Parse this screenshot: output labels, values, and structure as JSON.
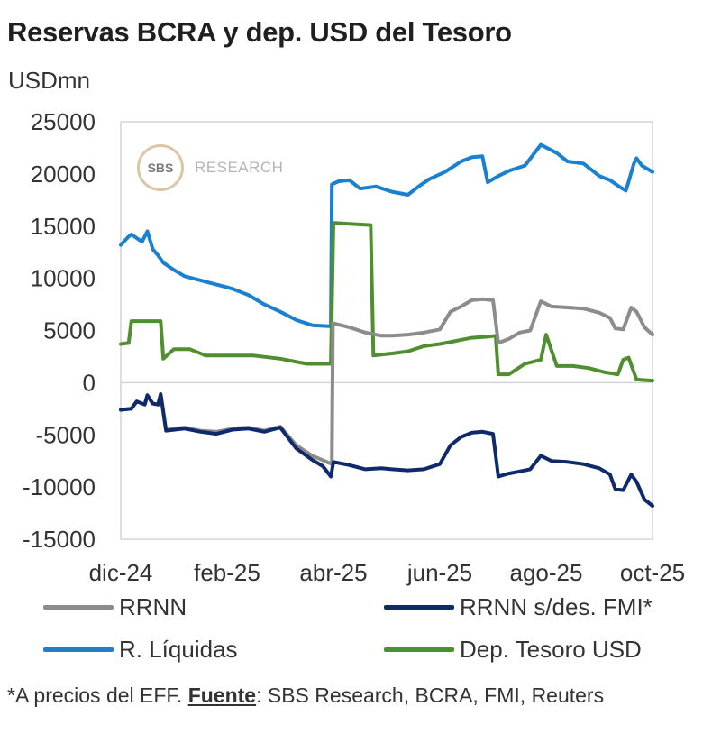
{
  "title": "Reservas BCRA y dep. USD del Tesoro",
  "unit_label": "USDmn",
  "logo": {
    "mark": "SBS",
    "text": "RESEARCH"
  },
  "footnote": {
    "prefix": "*A precios del EFF. ",
    "source_label": "Fuente",
    "source_text": ": SBS Research, BCRA, FMI, Reuters"
  },
  "legend": [
    {
      "label": "RRNN",
      "color": "#8c8c8c"
    },
    {
      "label": "RRNN s/des. FMI*",
      "color": "#0f2a6b"
    },
    {
      "label": "R. Líquidas",
      "color": "#1a80d0"
    },
    {
      "label": "Dep. Tesoro USD",
      "color": "#4f8f2f"
    }
  ],
  "chart_data": {
    "type": "line",
    "xlim": [
      0,
      10
    ],
    "ylim": [
      -15000,
      25000
    ],
    "yticks": [
      25000,
      20000,
      15000,
      10000,
      5000,
      0,
      -5000,
      -10000,
      -15000
    ],
    "xticks": [
      {
        "x": 0,
        "label": "dic-24"
      },
      {
        "x": 2,
        "label": "feb-25"
      },
      {
        "x": 4,
        "label": "abr-25"
      },
      {
        "x": 6,
        "label": "jun-25"
      },
      {
        "x": 8,
        "label": "ago-25"
      },
      {
        "x": 10,
        "label": "oct-25"
      }
    ],
    "series": [
      {
        "name": "R. Líquidas",
        "color": "#1a80d0",
        "x": [
          0,
          0.15,
          0.2,
          0.4,
          0.5,
          0.6,
          0.7,
          0.8,
          1.0,
          1.2,
          1.5,
          1.8,
          2.1,
          2.4,
          2.7,
          3.0,
          3.3,
          3.6,
          3.95,
          3.97,
          4.1,
          4.3,
          4.5,
          4.8,
          5.1,
          5.4,
          5.6,
          5.8,
          6.1,
          6.4,
          6.6,
          6.8,
          6.9,
          7.1,
          7.3,
          7.6,
          7.9,
          8.2,
          8.4,
          8.7,
          9.0,
          9.2,
          9.4,
          9.5,
          9.65,
          9.7,
          9.8,
          10.0
        ],
        "y": [
          13200,
          14000,
          14200,
          13500,
          14500,
          12800,
          12200,
          11500,
          10800,
          10200,
          9800,
          9400,
          9000,
          8400,
          7500,
          6800,
          6000,
          5500,
          5400,
          19000,
          19300,
          19400,
          18600,
          18800,
          18300,
          18000,
          18800,
          19500,
          20200,
          21200,
          21600,
          21700,
          19200,
          19800,
          20300,
          20800,
          22800,
          22000,
          21200,
          21000,
          19800,
          19400,
          18700,
          18400,
          21000,
          21500,
          20800,
          20200
        ]
      },
      {
        "name": "Dep. Tesoro USD",
        "color": "#4f8f2f",
        "x": [
          0,
          0.15,
          0.2,
          0.75,
          0.8,
          1.0,
          1.3,
          1.6,
          2.0,
          2.5,
          3.0,
          3.5,
          3.95,
          4.0,
          4.02,
          4.7,
          4.75,
          5.1,
          5.4,
          5.7,
          6.0,
          6.3,
          6.6,
          6.9,
          7.05,
          7.1,
          7.3,
          7.6,
          7.9,
          8.0,
          8.2,
          8.5,
          8.8,
          9.1,
          9.35,
          9.45,
          9.55,
          9.7,
          10.0
        ],
        "y": [
          3700,
          3800,
          5900,
          5900,
          2300,
          3200,
          3200,
          2600,
          2600,
          2600,
          2300,
          1800,
          1800,
          15300,
          15300,
          15100,
          2600,
          2800,
          3000,
          3500,
          3700,
          4000,
          4300,
          4400,
          4500,
          800,
          800,
          1800,
          2200,
          4600,
          1600,
          1600,
          1400,
          1000,
          800,
          2200,
          2400,
          300,
          200
        ]
      },
      {
        "name": "RRNN",
        "color": "#8c8c8c",
        "x": [
          0,
          0.2,
          0.3,
          0.45,
          0.5,
          0.6,
          0.7,
          0.75,
          0.85,
          1.2,
          1.5,
          1.8,
          2.1,
          2.4,
          2.7,
          3.0,
          3.3,
          3.6,
          3.97,
          3.99,
          4.3,
          4.6,
          4.9,
          5.1,
          5.4,
          5.7,
          6.0,
          6.2,
          6.4,
          6.6,
          6.8,
          7.0,
          7.1,
          7.3,
          7.5,
          7.7,
          7.9,
          8.1,
          8.4,
          8.7,
          9.0,
          9.2,
          9.3,
          9.45,
          9.6,
          9.7,
          9.85,
          10.0
        ],
        "y": [
          -2600,
          -2500,
          -1800,
          -2100,
          -1200,
          -2000,
          -2100,
          -1100,
          -4500,
          -4300,
          -4600,
          -4700,
          -4400,
          -4300,
          -4600,
          -4200,
          -6000,
          -7000,
          -7800,
          5700,
          5300,
          4800,
          4500,
          4500,
          4600,
          4800,
          5100,
          6800,
          7300,
          7900,
          8000,
          7900,
          3800,
          4200,
          4800,
          5000,
          7800,
          7300,
          7200,
          7100,
          6700,
          6200,
          5200,
          5100,
          7200,
          6800,
          5300,
          4600
        ]
      },
      {
        "name": "RRNN s/des. FMI*",
        "color": "#0f2a6b",
        "x": [
          0,
          0.2,
          0.3,
          0.45,
          0.5,
          0.6,
          0.7,
          0.75,
          0.85,
          1.2,
          1.5,
          1.8,
          2.1,
          2.4,
          2.7,
          3.0,
          3.3,
          3.6,
          3.8,
          3.95,
          4.0,
          4.3,
          4.6,
          4.9,
          5.1,
          5.4,
          5.7,
          6.0,
          6.2,
          6.4,
          6.6,
          6.8,
          7.0,
          7.1,
          7.3,
          7.5,
          7.7,
          7.9,
          8.1,
          8.4,
          8.7,
          9.0,
          9.2,
          9.3,
          9.45,
          9.6,
          9.7,
          9.85,
          10.0
        ],
        "y": [
          -2600,
          -2500,
          -1800,
          -2100,
          -1200,
          -2000,
          -2100,
          -1100,
          -4600,
          -4400,
          -4700,
          -4900,
          -4500,
          -4400,
          -4700,
          -4300,
          -6300,
          -7400,
          -8000,
          -9000,
          -7600,
          -7900,
          -8300,
          -8200,
          -8300,
          -8400,
          -8300,
          -7800,
          -6000,
          -5200,
          -4800,
          -4700,
          -4900,
          -9000,
          -8700,
          -8500,
          -8300,
          -7000,
          -7500,
          -7600,
          -7800,
          -8200,
          -8800,
          -10200,
          -10300,
          -8800,
          -9500,
          -11200,
          -11800
        ]
      }
    ]
  }
}
